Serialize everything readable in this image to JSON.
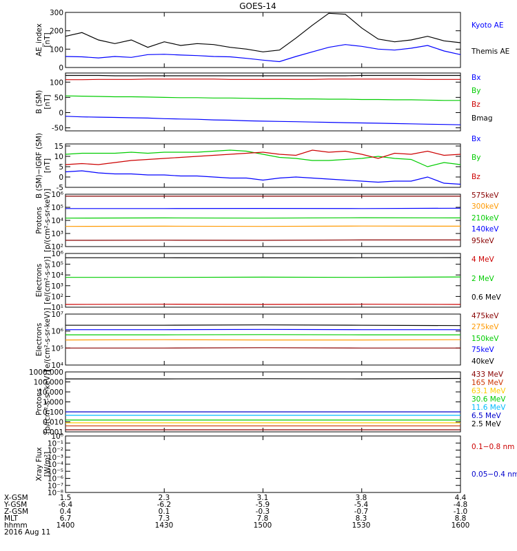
{
  "title": "GOES-14",
  "chart_data": [
    {
      "type": "line",
      "panel": "ae_index",
      "ylabel": [
        "AE_index",
        "[nT]"
      ],
      "ylim": [
        0,
        300
      ],
      "yticks": [
        0,
        100,
        200,
        300
      ],
      "ytick_labels": [
        "0",
        "100",
        "200",
        "300"
      ],
      "scale": "linear",
      "x": [
        "1400",
        "1405",
        "1410",
        "1415",
        "1420",
        "1425",
        "1430",
        "1435",
        "1440",
        "1445",
        "1450",
        "1455",
        "1500",
        "1505",
        "1510",
        "1515",
        "1520",
        "1525",
        "1530",
        "1535",
        "1540",
        "1545",
        "1550",
        "1555",
        "1600"
      ],
      "series": [
        {
          "name": "Kyoto AE",
          "color": "#0000ff",
          "values": [
            60,
            58,
            52,
            60,
            55,
            70,
            72,
            68,
            65,
            60,
            58,
            50,
            40,
            32,
            60,
            85,
            110,
            125,
            115,
            100,
            95,
            105,
            120,
            90,
            70
          ]
        },
        {
          "name": "Themis AE",
          "color": "#000000",
          "values": [
            170,
            190,
            150,
            130,
            150,
            110,
            140,
            120,
            130,
            125,
            110,
            100,
            85,
            95,
            160,
            230,
            295,
            290,
            215,
            155,
            140,
            150,
            170,
            145,
            135
          ]
        }
      ]
    },
    {
      "type": "line",
      "panel": "b_sm",
      "ylabel": [
        "B (SM)",
        "[nT]"
      ],
      "ylim": [
        -60,
        130
      ],
      "yticks": [
        -50,
        0,
        50,
        100
      ],
      "ytick_labels": [
        "-50",
        "0",
        "50",
        "100"
      ],
      "scale": "linear",
      "series": [
        {
          "name": "Bx",
          "color": "#0000ff",
          "values": [
            -12,
            -14,
            -15,
            -16,
            -17,
            -18,
            -20,
            -21,
            -22,
            -24,
            -25,
            -27,
            -28,
            -29,
            -30,
            -31,
            -32,
            -33,
            -34,
            -35,
            -36,
            -37,
            -38,
            -39,
            -40
          ]
        },
        {
          "name": "By",
          "color": "#00cc00",
          "values": [
            55,
            54,
            53,
            52,
            52,
            51,
            50,
            49,
            49,
            48,
            48,
            47,
            46,
            46,
            45,
            45,
            44,
            44,
            43,
            43,
            42,
            42,
            41,
            40,
            40
          ]
        },
        {
          "name": "Bz",
          "color": "#cc0000",
          "values": [
            108,
            108,
            109,
            109,
            109,
            110,
            110,
            110,
            110,
            110,
            109,
            109,
            109,
            109,
            109,
            109,
            110,
            110,
            110,
            110,
            110,
            110,
            109,
            109,
            109
          ]
        },
        {
          "name": "Bmag",
          "color": "#000000",
          "values": [
            122,
            122,
            122,
            121,
            121,
            121,
            121,
            121,
            121,
            121,
            121,
            121,
            121,
            121,
            121,
            121,
            121,
            121,
            122,
            122,
            122,
            122,
            122,
            122,
            122
          ]
        }
      ]
    },
    {
      "type": "line",
      "panel": "b_minus_igrf",
      "ylabel": [
        "B (SM)−IGRF (SM)",
        "[nT]"
      ],
      "ylim": [
        -5,
        16
      ],
      "yticks": [
        -5,
        0,
        5,
        10,
        15
      ],
      "ytick_labels": [
        "-5",
        "0",
        "5",
        "10",
        "15"
      ],
      "scale": "linear",
      "series": [
        {
          "name": "Bx",
          "color": "#0000ff",
          "values": [
            2.5,
            3,
            2,
            1.5,
            1.5,
            1,
            1,
            0.5,
            0.5,
            0,
            -0.5,
            -0.5,
            -1.5,
            -0.5,
            0,
            -0.5,
            -1,
            -1.5,
            -2,
            -2.5,
            -2,
            -2,
            0,
            -3,
            -3.5
          ]
        },
        {
          "name": "By",
          "color": "#00cc00",
          "values": [
            11,
            11.5,
            11.5,
            11.5,
            12,
            11.5,
            12,
            12,
            12,
            12.5,
            13,
            12.5,
            11,
            9.5,
            9,
            8,
            8,
            8.5,
            9,
            10,
            9,
            8.5,
            5,
            7,
            6
          ]
        },
        {
          "name": "Bz",
          "color": "#cc0000",
          "values": [
            6,
            6.5,
            6,
            7,
            8,
            8.5,
            9,
            9.5,
            10,
            10.5,
            11,
            11.5,
            12,
            11,
            10.5,
            13,
            12,
            12.5,
            11,
            9,
            11.5,
            11,
            12.5,
            10.5,
            11
          ]
        }
      ]
    },
    {
      "type": "line",
      "panel": "protons_low",
      "ylabel": [
        "Protons",
        "[p/(cm²-s-sr-keV)]"
      ],
      "ylim": [
        100,
        1000000
      ],
      "yticks": [
        100,
        1000,
        10000,
        100000,
        1000000
      ],
      "ytick_labels": [
        "10²",
        "10³",
        "10⁴",
        "10⁵",
        "10⁶"
      ],
      "scale": "log",
      "series": [
        {
          "name": "575keV",
          "color": "#880000",
          "values": [
            700000,
            700000,
            700000,
            700000,
            700000
          ]
        },
        {
          "name": "300keV",
          "color": "#ff9900",
          "values": [
            3500,
            3600,
            3500,
            3700,
            3600
          ]
        },
        {
          "name": "210keV",
          "color": "#00cc00",
          "values": [
            15000,
            15500,
            15000,
            16000,
            15500
          ]
        },
        {
          "name": "140keV",
          "color": "#0000ff",
          "values": [
            80000,
            80000,
            82000,
            80000,
            85000
          ]
        },
        {
          "name": "95keV",
          "color": "#880000",
          "values": [
            300,
            310,
            300,
            320,
            320
          ]
        }
      ]
    },
    {
      "type": "line",
      "panel": "electrons_mev",
      "ylabel": [
        "Electrons",
        "[e/(cm²-s-sr)]"
      ],
      "ylim": [
        10,
        1000000
      ],
      "yticks": [
        10,
        100,
        1000,
        10000,
        100000,
        1000000
      ],
      "ytick_labels": [
        "10¹",
        "10²",
        "10³",
        "10⁴",
        "10⁵",
        "10⁶"
      ],
      "scale": "log",
      "series": [
        {
          "name": "4 MeV",
          "color": "#cc0000",
          "values": [
            18,
            19,
            18,
            19,
            18
          ]
        },
        {
          "name": "2 MeV",
          "color": "#00cc00",
          "values": [
            6000,
            6000,
            6200,
            6000,
            6500
          ]
        },
        {
          "name": "0.6 MeV",
          "color": "#000000",
          "values": [
            400000,
            400000,
            390000,
            400000,
            410000
          ]
        }
      ]
    },
    {
      "type": "line",
      "panel": "electrons_kev",
      "ylabel": [
        "Electrons",
        "[e/(cm²-s-sr-keV)]"
      ],
      "ylim": [
        10000,
        10000000
      ],
      "yticks": [
        10000,
        100000,
        1000000,
        10000000
      ],
      "ytick_labels": [
        "10⁴",
        "10⁵",
        "10⁶",
        "10⁷"
      ],
      "scale": "log",
      "series": [
        {
          "name": "475keV",
          "color": "#880000",
          "values": [
            100000,
            100000,
            105000,
            100000,
            100000
          ]
        },
        {
          "name": "275keV",
          "color": "#ff9900",
          "values": [
            300000,
            310000,
            300000,
            300000,
            310000
          ]
        },
        {
          "name": "150keV",
          "color": "#00cc00",
          "values": [
            600000,
            600000,
            620000,
            600000,
            600000
          ]
        },
        {
          "name": "75keV",
          "color": "#0000ff",
          "values": [
            1200000,
            1200000,
            1250000,
            1200000,
            1200000
          ]
        },
        {
          "name": "40keV",
          "color": "#000000",
          "values": [
            2200000,
            2200000,
            2300000,
            2200000,
            2100000
          ]
        }
      ]
    },
    {
      "type": "line",
      "panel": "protons_mev",
      "ylabel": [
        "Protons",
        "[p/(cm²-s-sr-keV)]"
      ],
      "ylim": [
        0.001,
        1000
      ],
      "yticks": [
        0.001,
        0.01,
        0.1,
        1,
        10,
        100,
        1000
      ],
      "ytick_labels": [
        "0.001",
        "0.010",
        "0.100",
        "1.000",
        "10.000",
        "100.000",
        "1000.000"
      ],
      "scale": "log",
      "series": [
        {
          "name": "433 MeV",
          "color": "#880000",
          "values": [
            0.0016,
            0.0016,
            0.0016,
            0.0016,
            0.0016
          ]
        },
        {
          "name": "165 MeV",
          "color": "#cc3300",
          "values": [
            0.004,
            0.004,
            0.004,
            0.004,
            0.004
          ]
        },
        {
          "name": "63.1 MeV",
          "color": "#ffcc00",
          "values": [
            0.008,
            0.008,
            0.008,
            0.008,
            0.008
          ]
        },
        {
          "name": "30.6 MeV",
          "color": "#00cc00",
          "values": [
            0.015,
            0.015,
            0.015,
            0.015,
            0.015
          ]
        },
        {
          "name": "11.6 MeV",
          "color": "#00bbff",
          "values": [
            0.045,
            0.045,
            0.045,
            0.045,
            0.045
          ]
        },
        {
          "name": "6.5 MeV",
          "color": "#0000cc",
          "values": [
            0.1,
            0.1,
            0.1,
            0.1,
            0.1
          ]
        },
        {
          "name": "2.5 MeV",
          "color": "#000000",
          "values": [
            200,
            200,
            210,
            200,
            220
          ]
        }
      ]
    },
    {
      "type": "line",
      "panel": "xray",
      "ylabel": [
        "Xray Flux",
        "[W/m²]"
      ],
      "ylim": [
        1e-08,
        1
      ],
      "yticks": [
        1e-08,
        1e-07,
        1e-06,
        1e-05,
        0.0001,
        0.001,
        0.01,
        0.1,
        1
      ],
      "ytick_labels": [
        "10⁻⁸",
        "10⁻⁷",
        "10⁻⁶",
        "10⁻⁵",
        "10⁻⁴",
        "10⁻³",
        "10⁻²",
        "10⁻¹",
        "10⁰"
      ],
      "scale": "log",
      "series": [
        {
          "name": "0.1−0.8 nm",
          "color": "#cc0000",
          "values": []
        },
        {
          "name": "0.05−0.4 nm",
          "color": "#0000cc",
          "values": []
        }
      ]
    }
  ],
  "ephemeris": {
    "rows": [
      {
        "label": "X-GSM",
        "values": [
          "1.5",
          "2.3",
          "3.1",
          "3.8",
          "4.4"
        ]
      },
      {
        "label": "Y-GSM",
        "values": [
          "-6.4",
          "-6.2",
          "-5.9",
          "-5.4",
          "-4.8"
        ]
      },
      {
        "label": "Z-GSM",
        "values": [
          "0.4",
          "0.1",
          "-0.3",
          "-0.7",
          "-1.0"
        ]
      },
      {
        "label": "MLT",
        "values": [
          "6.7",
          "7.3",
          "7.8",
          "8.3",
          "8.8"
        ]
      },
      {
        "label": "hhmm",
        "values": [
          "1400",
          "1430",
          "1500",
          "1530",
          "1600"
        ]
      }
    ],
    "date": "2016 Aug 11"
  }
}
